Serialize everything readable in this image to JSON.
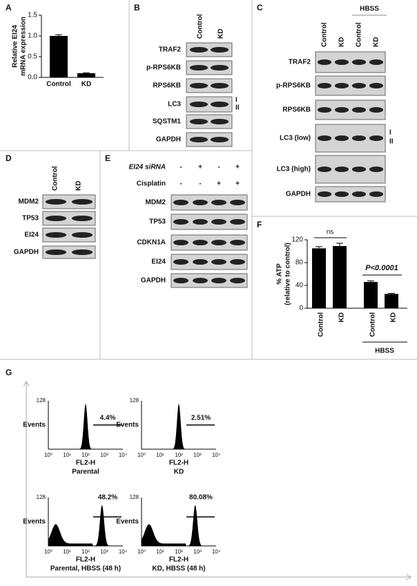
{
  "panels": [
    "A",
    "B",
    "C",
    "D",
    "E",
    "F",
    "G"
  ],
  "chart_data": [
    {
      "type": "bar",
      "ylabel": [
        "Relative EI24",
        "mRNA expression"
      ],
      "categories": [
        "Control",
        "KD"
      ],
      "values": [
        1.0,
        0.1
      ],
      "errors": [
        0.03,
        0.01
      ],
      "color": "#000000",
      "ylim": [
        0,
        1.5
      ],
      "yticks": [
        {
          "value": 0,
          "label": "0.0"
        },
        {
          "value": 0.5,
          "label": "0.5"
        },
        {
          "value": 1,
          "label": "1.0"
        },
        {
          "value": 1.5,
          "label": "1.5"
        }
      ]
    },
    {
      "type": "bar",
      "ylabel": [
        "% ATP",
        "(relative to control)"
      ],
      "categories": [
        "Control",
        "KD",
        "Control",
        "KD"
      ],
      "values": [
        105,
        109,
        46,
        25
      ],
      "errors": [
        3,
        5,
        2,
        1
      ],
      "color": "#000000",
      "ylim": [
        0,
        120
      ],
      "yticks": [
        0,
        40,
        80,
        120
      ],
      "annotations": [
        "ns",
        "P<0.0001"
      ],
      "group_label": "HBSS"
    }
  ],
  "blot_b": {
    "columns": [
      "Control",
      "KD"
    ],
    "rows": [
      "TRAF2",
      "p-RPS6KB",
      "RPS6KB",
      "LC3",
      "SQSTM1",
      "GAPDH"
    ],
    "markers": [
      "I",
      "II"
    ]
  },
  "blot_c": {
    "group": "HBSS",
    "columns": [
      "Control",
      "KD",
      "Control",
      "KD"
    ],
    "rows": [
      "TRAF2",
      "p-RPS6KB",
      "RPS6KB",
      "LC3 (low)",
      "LC3 (high)",
      "GAPDH"
    ],
    "markers": [
      "I",
      "II"
    ]
  },
  "blot_d": {
    "columns": [
      "Control",
      "KD"
    ],
    "rows": [
      "MDM2",
      "TP53",
      "EI24",
      "GAPDH"
    ]
  },
  "blot_e": {
    "conditions": [
      {
        "label": "EI24 siRNA",
        "signs": [
          "-",
          "+",
          "-",
          "+"
        ]
      },
      {
        "label": "Cisplatin",
        "signs": [
          "-",
          "-",
          "+",
          "+"
        ]
      }
    ],
    "rows": [
      "MDM2",
      "TP53",
      "CDKN1A",
      "EI24",
      "GAPDH"
    ]
  },
  "flow_g": {
    "ylabel": "Events",
    "ytick": "128",
    "xlabel": "FL2-H",
    "xticks": [
      "10⁰",
      "10¹",
      "10²",
      "10³",
      "10⁴"
    ],
    "plots": [
      {
        "title": "Parental",
        "percent": "4.4%"
      },
      {
        "title": "KD",
        "percent": "2.51%"
      },
      {
        "title": "Parental, HBSS (48 h)",
        "percent": "48.2%"
      },
      {
        "title": "KD, HBSS (48 h)",
        "percent": "80.08%"
      }
    ]
  }
}
